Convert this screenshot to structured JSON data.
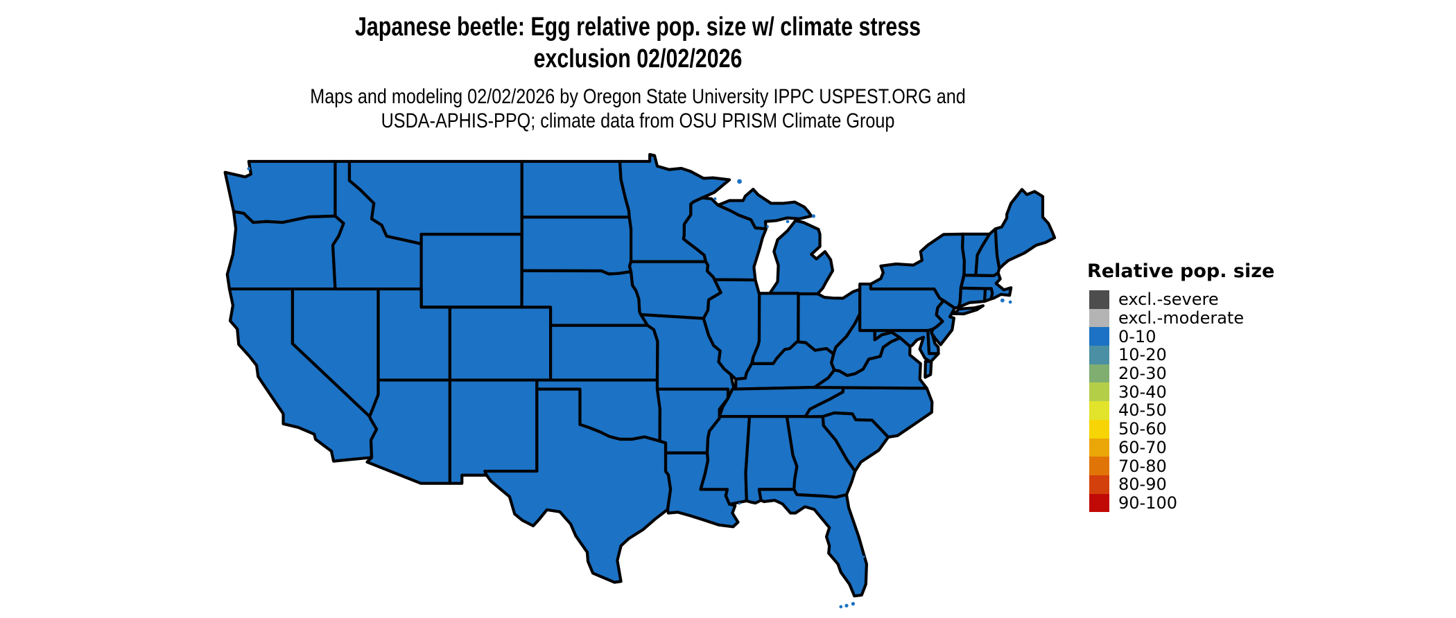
{
  "title": {
    "line1": "Japanese beetle: Egg relative pop. size w/ climate stress",
    "line2": "exclusion 02/02/2026"
  },
  "subtitle": {
    "line1": "Maps and modeling 02/02/2026 by Oregon State University IPPC USPEST.ORG and",
    "line2": "USDA-APHIS-PPQ; climate data from OSU PRISM Climate Group"
  },
  "legend": {
    "title": "Relative pop. size",
    "entries": [
      {
        "label": "excl.-severe",
        "color": "#4D4D4D"
      },
      {
        "label": "excl.-moderate",
        "color": "#B4B4B4"
      },
      {
        "label": "0-10",
        "color": "#1C72C4"
      },
      {
        "label": "10-20",
        "color": "#4B8FA4"
      },
      {
        "label": "20-30",
        "color": "#7FAE70"
      },
      {
        "label": "30-40",
        "color": "#B4CE47"
      },
      {
        "label": "40-50",
        "color": "#E2E32B"
      },
      {
        "label": "50-60",
        "color": "#F6D405"
      },
      {
        "label": "60-70",
        "color": "#EBA607"
      },
      {
        "label": "70-80",
        "color": "#E17407"
      },
      {
        "label": "80-90",
        "color": "#D4400C"
      },
      {
        "label": "90-100",
        "color": "#C10A06"
      }
    ]
  },
  "map": {
    "region": "Contiguous United States",
    "fill_color": "#1C72C4",
    "border_color": "#000000",
    "water_color": "#FFFFFF"
  },
  "map_data": {
    "type": "choropleth",
    "variable": "Egg relative population size (with climate stress exclusion)",
    "date": "02/02/2026",
    "classes": [
      "excl.-severe",
      "excl.-moderate",
      "0-10",
      "10-20",
      "20-30",
      "30-40",
      "40-50",
      "50-60",
      "60-70",
      "70-80",
      "80-90",
      "90-100"
    ],
    "observation": "All visible CONUS area is rendered in the 0-10 class (uniform blue); no exclusion or higher classes appear on the map"
  }
}
